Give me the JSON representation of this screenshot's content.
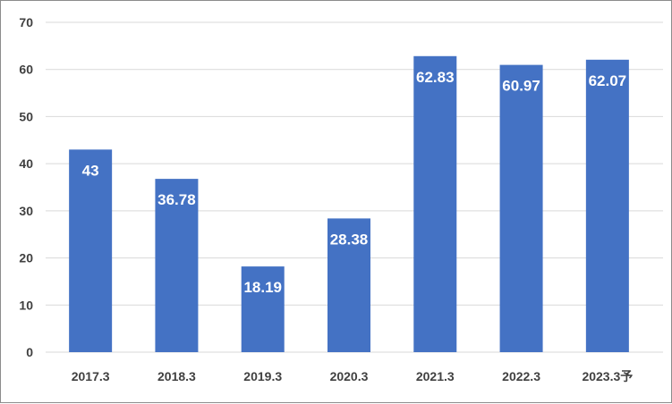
{
  "chart_data": {
    "type": "bar",
    "categories": [
      "2017.3",
      "2018.3",
      "2019.3",
      "2020.3",
      "2021.3",
      "2022.3",
      "2023.3予"
    ],
    "values": [
      43,
      36.78,
      18.19,
      28.38,
      62.83,
      60.97,
      62.07
    ],
    "data_labels": [
      "43",
      "36.78",
      "18.19",
      "28.38",
      "62.83",
      "60.97",
      "62.07"
    ],
    "title": "",
    "xlabel": "",
    "ylabel": "",
    "ylim": [
      0,
      70
    ],
    "yticks": [
      0,
      10,
      20,
      30,
      40,
      50,
      60,
      70
    ],
    "grid": true,
    "legend": "none",
    "bar_color": "#4472C4",
    "grid_color": "#d9d9d9"
  }
}
